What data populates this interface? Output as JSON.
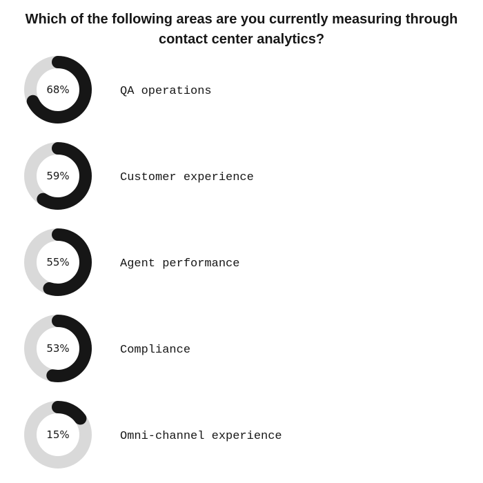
{
  "chart_data": {
    "type": "pie",
    "title_lines": [
      "Which of the following areas are you currently measuring through",
      "contact center analytics?"
    ],
    "categories": [
      "QA operations",
      "Customer experience",
      "Agent performance",
      "Compliance",
      "Omni-channel experience"
    ],
    "values": [
      68,
      59,
      55,
      53,
      15
    ],
    "value_labels": [
      "68%",
      "59%",
      "55%",
      "53%",
      "15%"
    ],
    "max": 100,
    "colors": {
      "filled": "#161616",
      "track": "#d9d9d9",
      "text": "#161616"
    }
  }
}
